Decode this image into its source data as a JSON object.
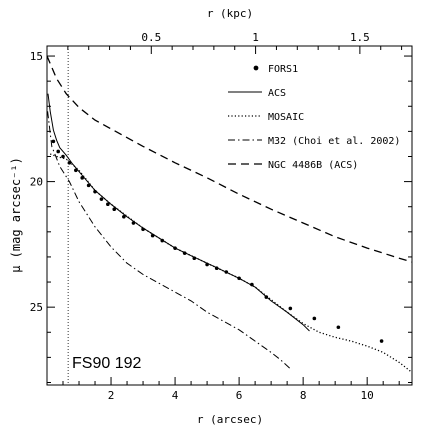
{
  "chart_data": {
    "type": "line",
    "xlabel": "r (arcsec)",
    "xlabel_top": "r (kpc)",
    "ylabel": "μ (mag arcsec⁻¹)",
    "xlim": [
      0,
      11.4
    ],
    "ylim": [
      28.1,
      14.6
    ],
    "top_axis_kpc_per_arcsec": 0.1535,
    "x_ticks": [
      2,
      4,
      6,
      8,
      10
    ],
    "y_ticks": [
      15,
      20,
      25
    ],
    "x_top_ticks": [
      0.5,
      1,
      1.5
    ],
    "top_tick_labels": [
      "0.5",
      "1",
      "1.5"
    ],
    "annotation": "FS90 192",
    "vline_x": 0.66,
    "legend": [
      "FORS1",
      "ACS",
      "MOSAIC",
      "M32 (Choi et al. 2002)",
      "NGC 4486B (ACS)"
    ],
    "series": [
      {
        "name": "FORS1",
        "style": "points",
        "points": [
          [
            0.2,
            18.4
          ],
          [
            0.35,
            18.8
          ],
          [
            0.5,
            19.0
          ],
          [
            0.7,
            19.25
          ],
          [
            0.9,
            19.55
          ],
          [
            1.1,
            19.85
          ],
          [
            1.3,
            20.15
          ],
          [
            1.5,
            20.4
          ],
          [
            1.7,
            20.7
          ],
          [
            1.9,
            20.9
          ],
          [
            2.1,
            21.1
          ],
          [
            2.4,
            21.4
          ],
          [
            2.7,
            21.65
          ],
          [
            3.0,
            21.9
          ],
          [
            3.3,
            22.15
          ],
          [
            3.6,
            22.35
          ],
          [
            4.0,
            22.65
          ],
          [
            4.3,
            22.85
          ],
          [
            4.6,
            23.05
          ],
          [
            5.0,
            23.3
          ],
          [
            5.3,
            23.45
          ],
          [
            5.6,
            23.6
          ],
          [
            6.0,
            23.85
          ],
          [
            6.4,
            24.1
          ],
          [
            6.85,
            24.6
          ],
          [
            7.6,
            25.05
          ],
          [
            8.35,
            25.45
          ],
          [
            9.1,
            25.8
          ],
          [
            10.45,
            26.35
          ]
        ]
      },
      {
        "name": "ACS",
        "style": "solid",
        "points": [
          [
            0.03,
            16.5
          ],
          [
            0.1,
            17.2
          ],
          [
            0.2,
            17.95
          ],
          [
            0.3,
            18.35
          ],
          [
            0.4,
            18.65
          ],
          [
            0.6,
            18.95
          ],
          [
            0.8,
            19.3
          ],
          [
            1.0,
            19.6
          ],
          [
            1.5,
            20.35
          ],
          [
            2.0,
            20.9
          ],
          [
            2.5,
            21.4
          ],
          [
            3.0,
            21.85
          ],
          [
            3.5,
            22.25
          ],
          [
            4.0,
            22.65
          ],
          [
            4.5,
            22.95
          ],
          [
            5.0,
            23.25
          ],
          [
            5.5,
            23.55
          ],
          [
            6.0,
            23.85
          ],
          [
            6.5,
            24.2
          ],
          [
            7.0,
            24.75
          ],
          [
            7.5,
            25.2
          ],
          [
            7.8,
            25.5
          ],
          [
            8.0,
            25.7
          ],
          [
            8.2,
            25.95
          ]
        ]
      },
      {
        "name": "MOSAIC",
        "style": "dotted",
        "points": [
          [
            0.1,
            18.9
          ],
          [
            0.3,
            19.0
          ],
          [
            0.6,
            19.1
          ],
          [
            1.0,
            19.55
          ],
          [
            1.5,
            20.35
          ],
          [
            2.0,
            20.9
          ],
          [
            3.0,
            21.85
          ],
          [
            4.0,
            22.65
          ],
          [
            5.0,
            23.25
          ],
          [
            6.0,
            23.85
          ],
          [
            6.5,
            24.2
          ],
          [
            7.0,
            24.7
          ],
          [
            7.5,
            25.2
          ],
          [
            8.0,
            25.65
          ],
          [
            8.5,
            26.0
          ],
          [
            9.0,
            26.2
          ],
          [
            9.5,
            26.35
          ],
          [
            10.0,
            26.55
          ],
          [
            10.5,
            26.8
          ],
          [
            11.0,
            27.2
          ],
          [
            11.4,
            27.6
          ]
        ]
      },
      {
        "name": "M32 (Choi et al. 2002)",
        "style": "dashdot",
        "points": [
          [
            0.02,
            17.2
          ],
          [
            0.15,
            18.6
          ],
          [
            0.4,
            19.4
          ],
          [
            0.7,
            20.0
          ],
          [
            1.0,
            20.8
          ],
          [
            1.5,
            21.8
          ],
          [
            2.0,
            22.6
          ],
          [
            2.5,
            23.25
          ],
          [
            3.0,
            23.7
          ],
          [
            3.5,
            24.05
          ],
          [
            4.0,
            24.4
          ],
          [
            4.5,
            24.75
          ],
          [
            5.0,
            25.2
          ],
          [
            5.5,
            25.55
          ],
          [
            6.0,
            25.9
          ],
          [
            6.5,
            26.35
          ],
          [
            7.0,
            26.8
          ],
          [
            7.3,
            27.1
          ],
          [
            7.6,
            27.45
          ]
        ]
      },
      {
        "name": "NGC 4486B (ACS)",
        "style": "dashed",
        "points": [
          [
            0.0,
            15.0
          ],
          [
            0.3,
            15.9
          ],
          [
            0.6,
            16.5
          ],
          [
            1.0,
            17.05
          ],
          [
            1.5,
            17.55
          ],
          [
            2.0,
            17.9
          ],
          [
            3.0,
            18.6
          ],
          [
            4.0,
            19.25
          ],
          [
            5.0,
            19.85
          ],
          [
            6.0,
            20.5
          ],
          [
            7.0,
            21.1
          ],
          [
            8.0,
            21.65
          ],
          [
            9.0,
            22.2
          ],
          [
            10.0,
            22.65
          ],
          [
            11.0,
            23.05
          ],
          [
            11.4,
            23.2
          ]
        ]
      }
    ]
  }
}
